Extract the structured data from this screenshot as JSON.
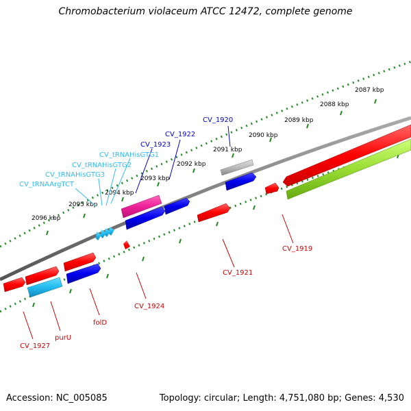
{
  "title": "Chromobacterium violaceum ATCC 12472, complete genome",
  "footer": {
    "accession": "Accession: NC_005085",
    "summary": "Topology: circular; Length: 4,751,080 bp; Genes: 4,530"
  },
  "scale_labels": [
    "2087 kbp",
    "2088 kbp",
    "2089 kbp",
    "2090 kbp",
    "2091 kbp",
    "2092 kbp",
    "2093 kbp",
    "2094 kbp",
    "2095 kbp",
    "2096 kbp"
  ],
  "colors": {
    "cds": "#ff0000",
    "cds_blue": "#0000ff",
    "trna": "#33ccff",
    "rrna_like": "#ff3399",
    "pseudo": "#aaaaaa",
    "other": "#88dd22",
    "backbone": "#808080",
    "ticks": "#228822",
    "label_red": "#cc0000",
    "label_blue": "#0000cc",
    "label_cyan": "#33bbee"
  },
  "gene_labels": [
    {
      "name": "CV_1919",
      "color": "red"
    },
    {
      "name": "CV_1920",
      "color": "blue"
    },
    {
      "name": "CV_1921",
      "color": "red"
    },
    {
      "name": "CV_1922",
      "color": "blue"
    },
    {
      "name": "CV_1923",
      "color": "blue"
    },
    {
      "name": "CV_tRNAHisGTG1",
      "color": "cyan"
    },
    {
      "name": "CV_tRNAHisGTG2",
      "color": "cyan"
    },
    {
      "name": "CV_tRNAHisGTG3",
      "color": "cyan"
    },
    {
      "name": "CV_tRNAArgTCT",
      "color": "cyan"
    },
    {
      "name": "CV_1924",
      "color": "red"
    },
    {
      "name": "folD",
      "color": "red"
    },
    {
      "name": "purU",
      "color": "red"
    },
    {
      "name": "CV_1927",
      "color": "red"
    }
  ]
}
